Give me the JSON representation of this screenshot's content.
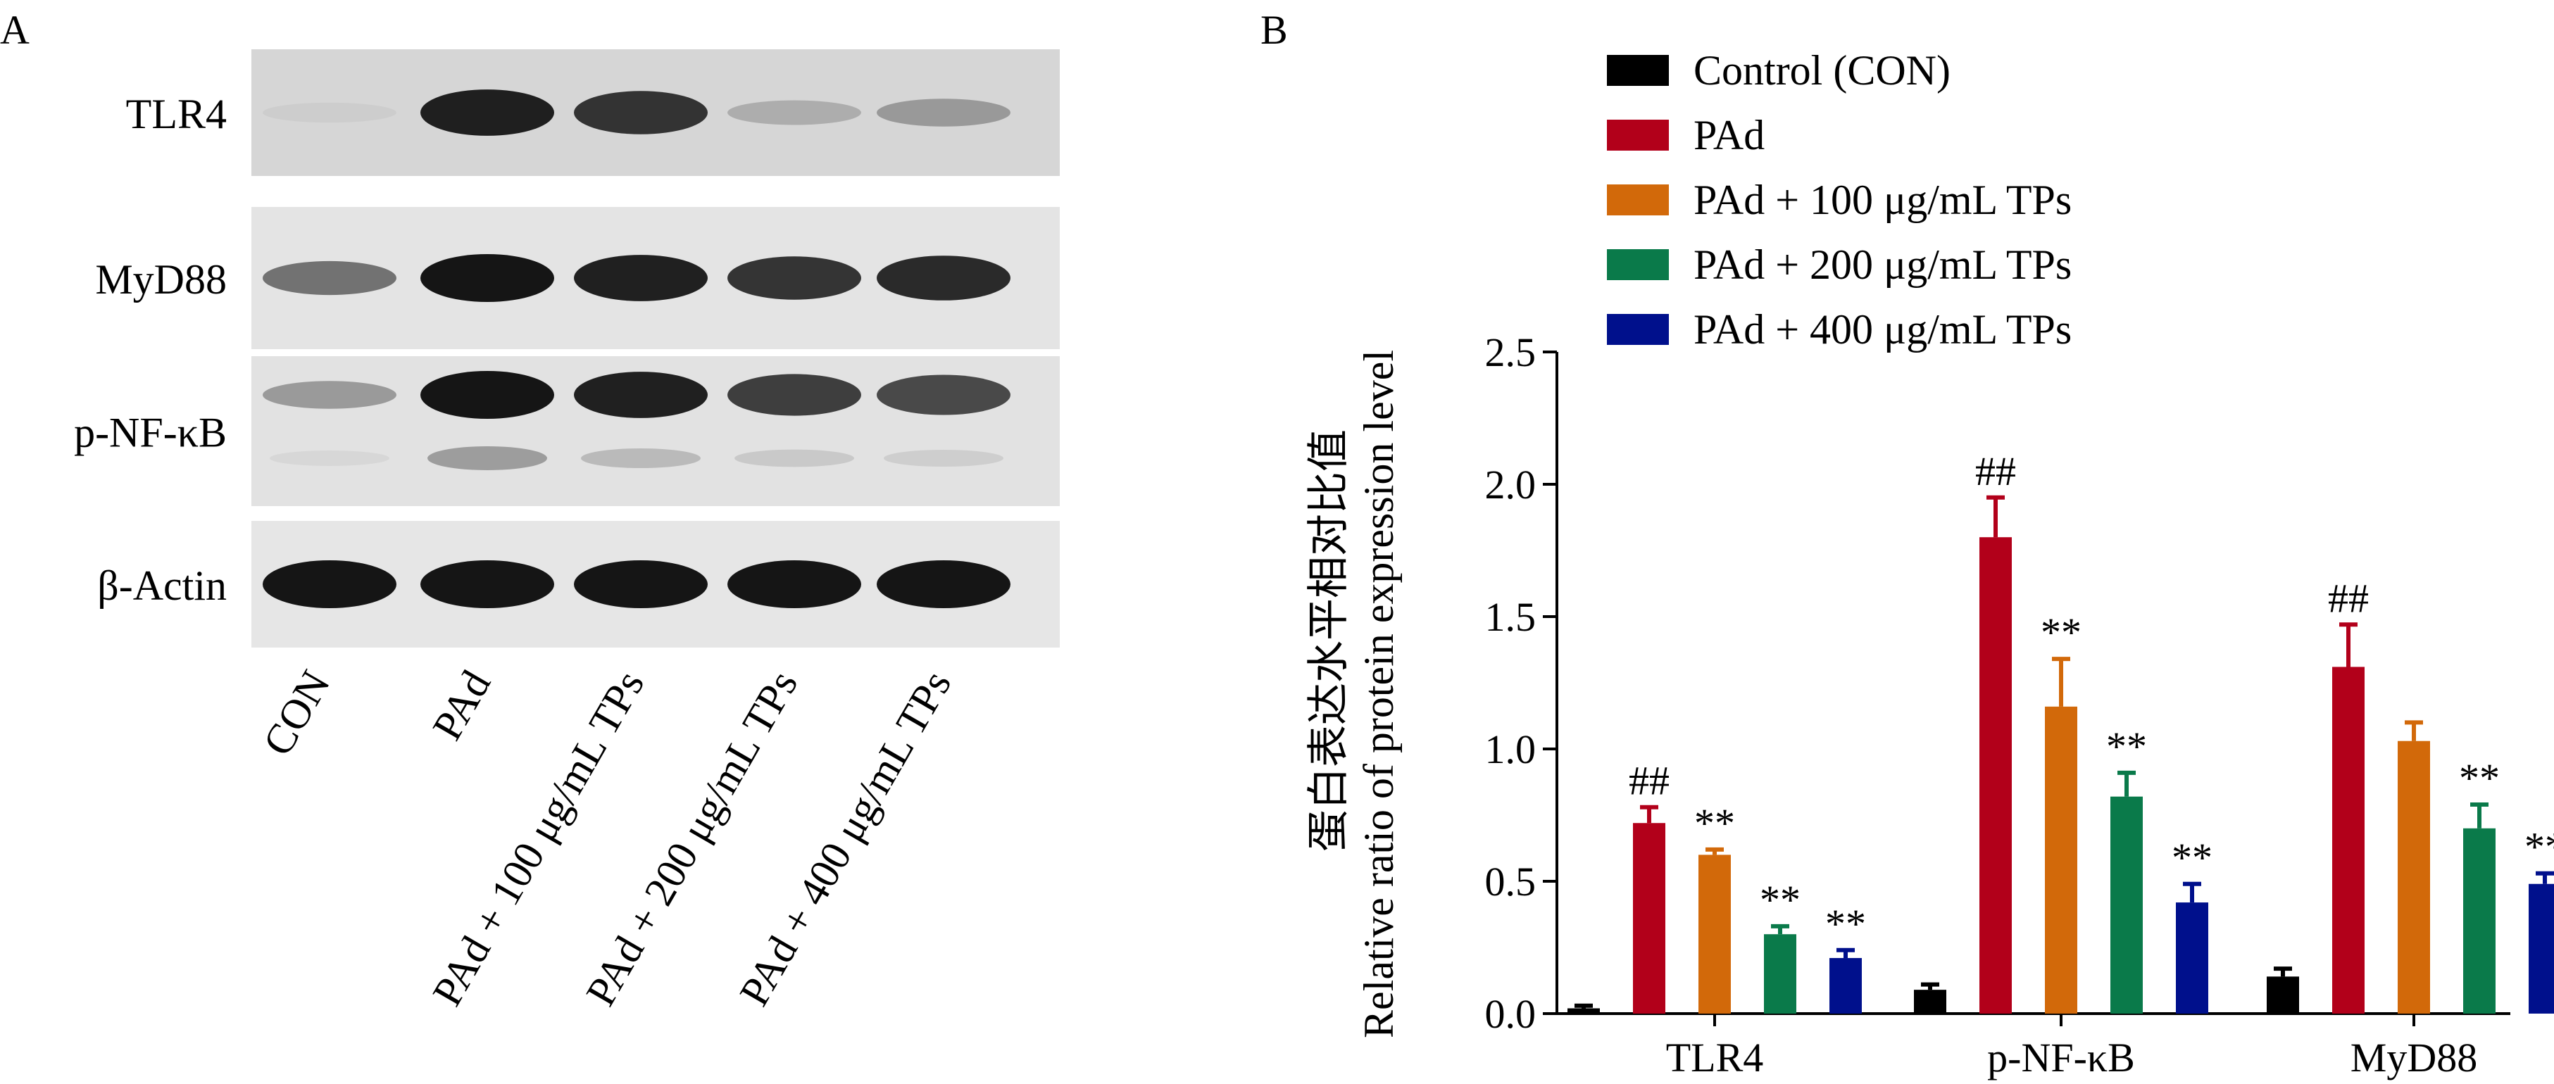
{
  "panel_a": {
    "label": "A",
    "rows": [
      {
        "name": "TLR4",
        "bg": "#d6d6d6",
        "darkness": [
          0.1,
          0.95,
          0.85,
          0.25,
          0.35
        ],
        "lower": [
          0,
          0,
          0,
          0,
          0
        ]
      },
      {
        "name": "MyD88",
        "bg": "#e4e4e4",
        "darkness": [
          0.55,
          1.0,
          0.95,
          0.85,
          0.9
        ],
        "lower": [
          0,
          0,
          0,
          0,
          0
        ]
      },
      {
        "name": "p-NF-κB",
        "bg": "#e2e2e2",
        "darkness": [
          0.35,
          1.0,
          0.95,
          0.8,
          0.75
        ],
        "lower": [
          0.05,
          0.35,
          0.2,
          0.12,
          0.1
        ]
      },
      {
        "name": "β-Actin",
        "bg": "#e6e6e6",
        "darkness": [
          1.0,
          1.0,
          1.0,
          1.0,
          1.0
        ],
        "lower": [
          0,
          0,
          0,
          0,
          0
        ]
      }
    ],
    "lanes": [
      "CON",
      "PAd",
      "PAd + 100 μg/mL TPs",
      "PAd + 200 μg/mL TPs",
      "PAd + 400 μg/mL TPs"
    ]
  },
  "panel_b": {
    "label": "B"
  },
  "chart_data": {
    "type": "bar",
    "ylabel_cn": "蛋白表达水平相对比值",
    "ylabel_en": "Relative ratio of protein expression level",
    "xlabel": "",
    "ylim": [
      0,
      2.5
    ],
    "yticks": [
      "0.0",
      "0.5",
      "1.0",
      "1.5",
      "2.0",
      "2.5"
    ],
    "categories": [
      "TLR4",
      "p-NF-κB",
      "MyD88"
    ],
    "series": [
      {
        "name": "Control (CON)",
        "color": "#000000",
        "values": [
          0.02,
          0.09,
          0.14
        ],
        "errors": [
          0.01,
          0.02,
          0.03
        ],
        "marks": [
          "",
          "",
          ""
        ]
      },
      {
        "name": "PAd",
        "color": "#b2001a",
        "values": [
          0.72,
          1.8,
          1.31
        ],
        "errors": [
          0.06,
          0.15,
          0.16
        ],
        "marks": [
          "##",
          "##",
          "##"
        ]
      },
      {
        "name": "PAd + 100 μg/mL TPs",
        "color": "#d2690a",
        "values": [
          0.6,
          1.16,
          1.03
        ],
        "errors": [
          0.02,
          0.18,
          0.07
        ],
        "marks": [
          "**",
          "**",
          ""
        ]
      },
      {
        "name": "PAd + 200 μg/mL TPs",
        "color": "#0a7a4a",
        "values": [
          0.3,
          0.82,
          0.7
        ],
        "errors": [
          0.03,
          0.09,
          0.09
        ],
        "marks": [
          "**",
          "**",
          "**"
        ]
      },
      {
        "name": "PAd + 400 μg/mL TPs",
        "color": "#00108c",
        "values": [
          0.21,
          0.42,
          0.49
        ],
        "errors": [
          0.03,
          0.07,
          0.04
        ],
        "marks": [
          "**",
          "**",
          "**"
        ]
      }
    ],
    "legend_position": "top"
  }
}
